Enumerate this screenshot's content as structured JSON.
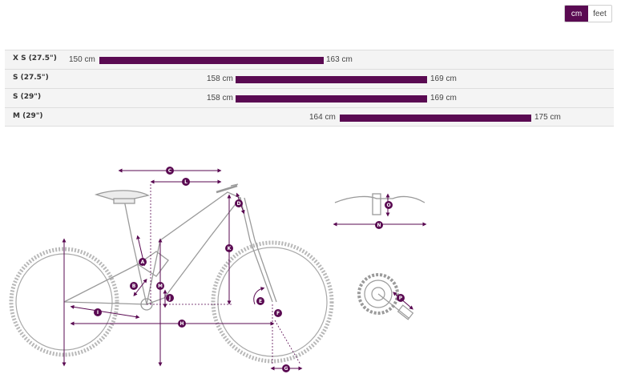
{
  "unit_toggle": {
    "cm_label": "cm",
    "feet_label": "feet",
    "selected": "cm"
  },
  "accent_color": "#5a0a52",
  "size_rows": [
    {
      "label": "X S (27.5\")",
      "min": "150 cm",
      "max": "163 cm"
    },
    {
      "label": "S (27.5\")",
      "min": "158 cm",
      "max": "169 cm"
    },
    {
      "label": "S (29\")",
      "min": "158 cm",
      "max": "169 cm"
    },
    {
      "label": "M (29\")",
      "min": "164 cm",
      "max": "175 cm"
    }
  ],
  "geometry_markers": [
    "A",
    "B",
    "C",
    "D",
    "E",
    "F",
    "G",
    "H",
    "I",
    "J",
    "K",
    "L",
    "M",
    "N",
    "O",
    "P"
  ]
}
